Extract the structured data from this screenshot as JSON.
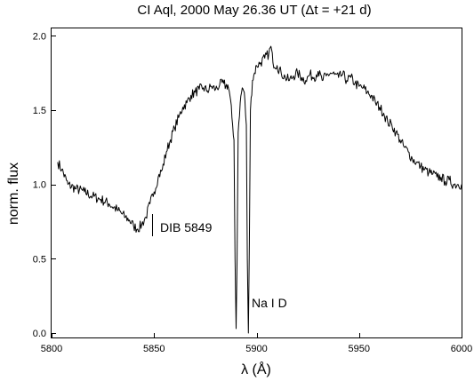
{
  "chart_data": {
    "type": "line",
    "title": "CI Aql, 2000 May 26.36 UT (Δt = +21 d)",
    "xlabel": "λ (Å)",
    "ylabel": "norm. flux",
    "xlim": [
      5800,
      6000
    ],
    "ylim": [
      -0.03,
      2.05
    ],
    "xticks": [
      5800,
      5850,
      5900,
      5950,
      6000
    ],
    "xtick_labels": [
      "5800",
      "5850",
      "5900",
      "5950",
      "6000"
    ],
    "yticks": [
      0.0,
      0.5,
      1.0,
      1.5,
      2.0
    ],
    "ytick_labels": [
      "0.0",
      "0.5",
      "1.0",
      "1.5",
      "2.0"
    ],
    "grid": false,
    "series": [
      {
        "x": [
          5803,
          5805,
          5808,
          5812,
          5816,
          5820,
          5824,
          5828,
          5832,
          5836,
          5838,
          5840,
          5842,
          5844,
          5846,
          5848,
          5850,
          5852,
          5854,
          5856,
          5858,
          5860,
          5862,
          5864,
          5866,
          5868,
          5870,
          5872,
          5874,
          5876,
          5878,
          5880,
          5882,
          5884,
          5885,
          5886,
          5887,
          5888,
          5889,
          5889.5,
          5890,
          5890.5,
          5891,
          5892,
          5893,
          5894,
          5895,
          5895.5,
          5896,
          5896.5,
          5897,
          5898,
          5899,
          5900,
          5902,
          5904,
          5906,
          5907,
          5908,
          5910,
          5912,
          5914,
          5916,
          5918,
          5920,
          5922,
          5924,
          5926,
          5928,
          5930,
          5932,
          5934,
          5936,
          5938,
          5940,
          5942,
          5944,
          5946,
          5948,
          5950,
          5952,
          5954,
          5956,
          5958,
          5960,
          5962,
          5964,
          5966,
          5968,
          5970,
          5972,
          5974,
          5976,
          5978,
          5980,
          5982,
          5984,
          5986,
          5988,
          5990,
          5992,
          5994,
          5996,
          5998,
          6000
        ],
        "y": [
          1.15,
          1.1,
          1.0,
          0.97,
          0.95,
          0.92,
          0.9,
          0.87,
          0.83,
          0.78,
          0.76,
          0.72,
          0.7,
          0.73,
          0.78,
          0.87,
          0.95,
          1.05,
          1.1,
          1.22,
          1.3,
          1.38,
          1.45,
          1.52,
          1.55,
          1.6,
          1.62,
          1.64,
          1.65,
          1.63,
          1.66,
          1.64,
          1.67,
          1.68,
          1.66,
          1.67,
          1.6,
          1.45,
          1.3,
          0.5,
          0.03,
          0.5,
          1.35,
          1.55,
          1.65,
          1.62,
          1.4,
          0.5,
          0.0,
          0.6,
          1.5,
          1.7,
          1.75,
          1.8,
          1.82,
          1.85,
          1.88,
          1.93,
          1.82,
          1.8,
          1.75,
          1.72,
          1.7,
          1.73,
          1.75,
          1.72,
          1.7,
          1.74,
          1.72,
          1.76,
          1.7,
          1.73,
          1.75,
          1.74,
          1.72,
          1.74,
          1.7,
          1.72,
          1.68,
          1.66,
          1.65,
          1.62,
          1.6,
          1.55,
          1.52,
          1.48,
          1.42,
          1.4,
          1.35,
          1.3,
          1.25,
          1.22,
          1.17,
          1.15,
          1.12,
          1.1,
          1.08,
          1.07,
          1.05,
          1.05,
          1.02,
          1.03,
          1.0,
          1.0,
          1.0
        ]
      }
    ],
    "annotations": [
      {
        "text": "DIB 5849",
        "marker_x": 5849,
        "marker_y_range": [
          0.65,
          0.8
        ]
      },
      {
        "text": "Na I D"
      }
    ]
  }
}
